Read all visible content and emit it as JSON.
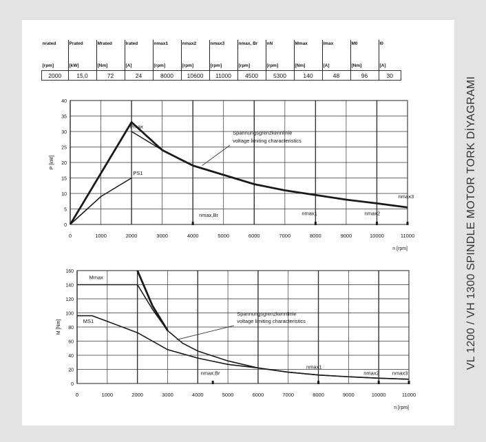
{
  "side_title": "VL 1200  / VH 1300 SPINDLE MOTOR TORK DİYAGRAMI",
  "spec_table": {
    "headers": [
      "nrated",
      "Prated",
      "Mrated",
      "Irated",
      "nmax1",
      "nmax2",
      "nmax3",
      "nmax, Br",
      "nN",
      "Mmax",
      "Imax",
      "M0",
      "I0"
    ],
    "units": [
      "[rpm]",
      "[kW]",
      "[Nm]",
      "[A]",
      "[rpm]",
      "[rpm]",
      "[rpm]",
      "[rpm]",
      "[rpm]",
      "[Nm]",
      "[A]",
      "[Nm]",
      "[A]"
    ],
    "values": [
      "2000",
      "15,0",
      "72",
      "24",
      "8000",
      "10600",
      "11000",
      "4500",
      "5300",
      "140",
      "48",
      "96",
      "30"
    ]
  },
  "chart_data": [
    {
      "type": "line",
      "title": "",
      "xlabel": "n [rpm]",
      "ylabel": "P [kW]",
      "xlim": [
        0,
        11000
      ],
      "ylim": [
        0,
        40
      ],
      "xticks": [
        "0",
        "1000",
        "2000",
        "3000",
        "4000",
        "5000",
        "6000",
        "7000",
        "8000",
        "9000",
        "10000",
        "11000"
      ],
      "yticks": [
        "0",
        "5",
        "10",
        "15",
        "20",
        "25",
        "30",
        "35",
        "40"
      ],
      "grid": true,
      "series": [
        {
          "name": "Pmax",
          "x": [
            0,
            2000,
            3000,
            4000,
            5000,
            6000,
            7000,
            8000,
            9000,
            10000,
            11000
          ],
          "y": [
            0,
            33,
            24,
            19,
            16,
            13,
            11,
            9.5,
            8,
            6.8,
            5.5
          ]
        },
        {
          "name": "PS1",
          "x": [
            0,
            1000,
            2000
          ],
          "y": [
            0,
            9,
            15
          ]
        },
        {
          "name": "",
          "x": [
            2000,
            3000,
            4000,
            5000,
            6000,
            7000,
            8000,
            9000,
            10000,
            11000
          ],
          "y": [
            30,
            24,
            19,
            16,
            13,
            11,
            9.5,
            8,
            6.8,
            5.5
          ]
        }
      ],
      "annotations": [
        {
          "text": "Pmax",
          "x": 1950,
          "y": 31
        },
        {
          "text": "PS1",
          "x": 2050,
          "y": 16
        },
        {
          "text": "Spannungsgrenzkennlinie",
          "x": 5300,
          "y": 29
        },
        {
          "text": "voltage limiting characteristics",
          "x": 5300,
          "y": 26.5
        },
        {
          "text": "nmax,Br",
          "x": 4200,
          "y": 2.5
        },
        {
          "text": "nmax1",
          "x": 7550,
          "y": 3
        },
        {
          "text": "nmax2",
          "x": 9600,
          "y": 3
        },
        {
          "text": "nmax3",
          "x": 10700,
          "y": 8.5
        }
      ]
    },
    {
      "type": "line",
      "title": "",
      "xlabel": "n [rpm]",
      "ylabel": "M [Nm]",
      "xlim": [
        0,
        11000
      ],
      "ylim": [
        0,
        160
      ],
      "xticks": [
        "0",
        "1000",
        "2000",
        "3000",
        "4000",
        "5000",
        "6000",
        "7000",
        "8000",
        "9000",
        "10000",
        "11000"
      ],
      "yticks": [
        "0",
        "20",
        "40",
        "60",
        "80",
        "100",
        "120",
        "140",
        "160"
      ],
      "grid": true,
      "series": [
        {
          "name": "Mmax",
          "x": [
            0,
            2000,
            2500,
            3000,
            3500,
            4000,
            5000,
            6000,
            7000,
            8000,
            9000,
            10000,
            11000
          ],
          "y": [
            140,
            140,
            105,
            75,
            57,
            46,
            32,
            22,
            16,
            12,
            9.5,
            7.5,
            6
          ]
        },
        {
          "name": "MS1",
          "x": [
            0,
            500,
            1000,
            2000,
            3000,
            4000,
            5000,
            6000,
            7000,
            8000,
            9000,
            10000,
            11000
          ],
          "y": [
            96,
            96,
            88,
            72,
            48,
            36,
            27,
            22,
            16,
            12,
            9.5,
            7.5,
            6
          ]
        },
        {
          "name": "",
          "x": [
            2000,
            2500,
            3000
          ],
          "y": [
            160,
            110,
            75
          ]
        }
      ],
      "annotations": [
        {
          "text": "Mmax",
          "x": 400,
          "y": 148
        },
        {
          "text": "MS1",
          "x": 200,
          "y": 86
        },
        {
          "text": "Spannungsgrenzkennlinie",
          "x": 5300,
          "y": 96
        },
        {
          "text": "voltage limiting characteristics",
          "x": 5300,
          "y": 86
        },
        {
          "text": "nmax,Br",
          "x": 4100,
          "y": 12
        },
        {
          "text": "nmax1",
          "x": 7600,
          "y": 21
        },
        {
          "text": "nmax2",
          "x": 9500,
          "y": 12
        },
        {
          "text": "nmax3",
          "x": 10450,
          "y": 12
        }
      ]
    }
  ]
}
